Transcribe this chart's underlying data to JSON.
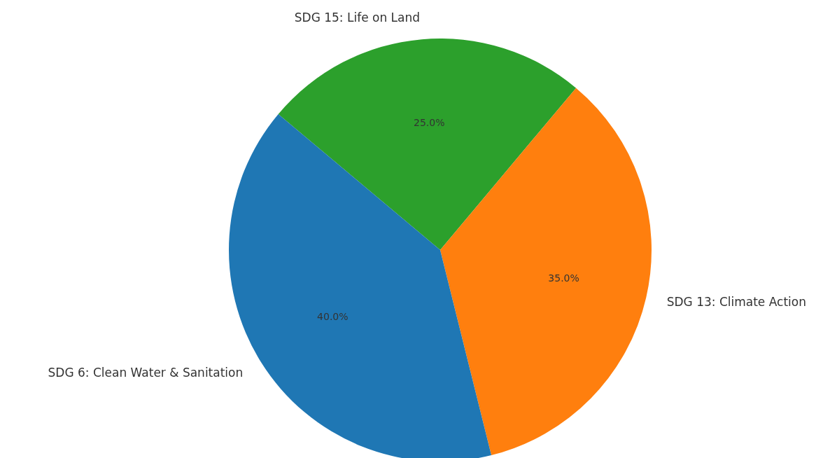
{
  "chart_data": {
    "type": "pie",
    "categories": [
      "SDG 6: Clean Water & Sanitation",
      "SDG 13: Climate Action",
      "SDG 15: Life on Land"
    ],
    "values": [
      40,
      35,
      25
    ],
    "colors": [
      "#1f77b4",
      "#ff7f0e",
      "#2ca02c"
    ],
    "value_labels": [
      "40.0%",
      "35.0%",
      "25.0%"
    ]
  }
}
